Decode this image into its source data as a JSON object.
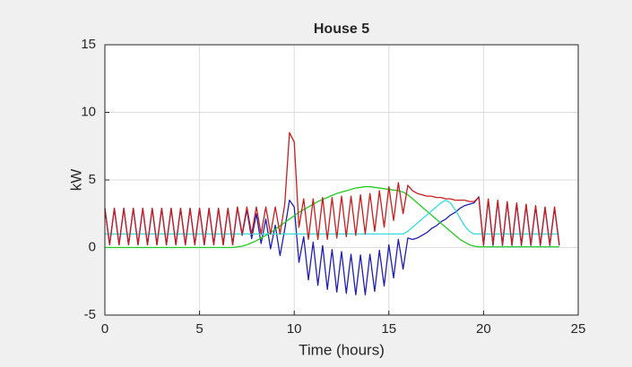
{
  "chart_data": {
    "type": "line",
    "title": "House 5",
    "xlabel": "Time (hours)",
    "ylabel": "kW",
    "xlim": [
      0,
      25
    ],
    "ylim": [
      -5,
      15
    ],
    "xticks": [
      0,
      5,
      10,
      15,
      20,
      25
    ],
    "yticks": [
      -5,
      0,
      5,
      10,
      15
    ],
    "grid": true,
    "x": [
      0,
      0.25,
      0.5,
      0.75,
      1,
      1.25,
      1.5,
      1.75,
      2,
      2.25,
      2.5,
      2.75,
      3,
      3.25,
      3.5,
      3.75,
      4,
      4.25,
      4.5,
      4.75,
      5,
      5.25,
      5.5,
      5.75,
      6,
      6.25,
      6.5,
      6.75,
      7,
      7.25,
      7.5,
      7.75,
      8,
      8.25,
      8.5,
      8.75,
      9,
      9.25,
      9.5,
      9.75,
      10,
      10.25,
      10.5,
      10.75,
      11,
      11.25,
      11.5,
      11.75,
      12,
      12.25,
      12.5,
      12.75,
      13,
      13.25,
      13.5,
      13.75,
      14,
      14.25,
      14.5,
      14.75,
      15,
      15.25,
      15.5,
      15.75,
      16,
      16.25,
      16.5,
      16.75,
      17,
      17.25,
      17.5,
      17.75,
      18,
      18.25,
      18.5,
      18.75,
      19,
      19.25,
      19.5,
      19.75,
      20,
      20.25,
      20.5,
      20.75,
      21,
      21.25,
      21.5,
      21.75,
      22,
      22.25,
      22.5,
      22.75,
      23,
      23.25,
      23.5,
      23.75,
      24
    ],
    "series": [
      {
        "color": "#1f1fb4",
        "values": [
          2.9,
          0.2,
          2.9,
          0.2,
          2.9,
          0.2,
          2.9,
          0.2,
          2.9,
          0.2,
          2.9,
          0.2,
          2.9,
          0.2,
          2.9,
          0.2,
          2.9,
          0.2,
          2.9,
          0.2,
          2.9,
          0.2,
          2.9,
          0.2,
          2.9,
          0.2,
          2.9,
          0.2,
          2.95,
          0.9,
          2.8,
          0.65,
          2.5,
          0.3,
          2.1,
          -0.1,
          1.65,
          -0.6,
          1.35,
          3.5,
          3.0,
          -1.1,
          0.8,
          -2.4,
          0.4,
          -2.8,
          0.15,
          -3.1,
          -0.15,
          -3.3,
          -0.3,
          -3.4,
          -0.5,
          -3.5,
          -0.55,
          -3.5,
          -0.5,
          -3.25,
          -0.2,
          -2.85,
          0.2,
          -2.25,
          0.6,
          -1.6,
          0.7,
          0.6,
          0.7,
          0.9,
          1.1,
          1.4,
          1.6,
          1.9,
          2.1,
          2.4,
          2.6,
          2.9,
          3.1,
          3.2,
          3.3,
          3.75,
          0.15,
          3.55,
          0.15,
          3.45,
          0.15,
          3.35,
          0.15,
          3.25,
          0.15,
          3.15,
          0.15,
          3.05,
          0.15,
          2.95,
          0.15,
          2.95,
          0.15
        ]
      },
      {
        "color": "#22cc22",
        "values": [
          0,
          0,
          0,
          0,
          0,
          0,
          0,
          0,
          0,
          0,
          0,
          0,
          0,
          0,
          0,
          0,
          0,
          0,
          0,
          0,
          0,
          0,
          0,
          0,
          0,
          0,
          0,
          0,
          0.05,
          0.1,
          0.2,
          0.35,
          0.5,
          0.7,
          0.9,
          1.1,
          1.35,
          1.6,
          1.85,
          2.1,
          2.35,
          2.6,
          2.8,
          3.0,
          3.2,
          3.4,
          3.55,
          3.7,
          3.85,
          4.0,
          4.1,
          4.2,
          4.3,
          4.4,
          4.45,
          4.5,
          4.5,
          4.45,
          4.4,
          4.35,
          4.3,
          4.25,
          4.2,
          4.1,
          3.9,
          3.6,
          3.3,
          3.0,
          2.7,
          2.4,
          2.1,
          1.8,
          1.5,
          1.2,
          0.9,
          0.6,
          0.4,
          0.2,
          0.1,
          0.05,
          0.05,
          0.05,
          0.05,
          0.05,
          0.05,
          0.05,
          0.05,
          0.05,
          0.05,
          0.05,
          0.05,
          0.05,
          0.05,
          0.05,
          0.05,
          0.05,
          0.05
        ]
      },
      {
        "color": "#33dddd",
        "values": [
          1,
          1,
          1,
          1,
          1,
          1,
          1,
          1,
          1,
          1,
          1,
          1,
          1,
          1,
          1,
          1,
          1,
          1,
          1,
          1,
          1,
          1,
          1,
          1,
          1,
          1,
          1,
          1,
          1,
          1,
          1,
          1,
          1,
          1,
          1,
          1,
          1,
          1,
          1,
          1,
          1,
          1,
          1,
          1,
          1,
          1,
          1,
          1,
          1,
          1,
          1,
          1,
          1,
          1,
          1,
          1,
          1,
          1,
          1,
          1,
          1,
          1,
          1,
          1,
          1.2,
          1.5,
          1.8,
          2.1,
          2.4,
          2.7,
          3.0,
          3.3,
          3.5,
          3.3,
          2.8,
          2.2,
          1.6,
          1.2,
          1.0,
          1,
          1,
          1,
          1,
          1,
          1,
          1,
          1,
          1,
          1,
          1,
          1,
          1,
          1,
          1,
          1,
          1,
          1
        ]
      },
      {
        "color": "#c81e1e",
        "values": [
          2.9,
          0.2,
          2.9,
          0.2,
          2.9,
          0.2,
          2.9,
          0.2,
          2.9,
          0.2,
          2.9,
          0.2,
          2.9,
          0.2,
          2.9,
          0.2,
          2.9,
          0.2,
          2.9,
          0.2,
          2.9,
          0.2,
          2.9,
          0.2,
          2.9,
          0.2,
          2.9,
          0.2,
          3,
          1,
          3,
          1,
          3,
          1,
          3,
          1,
          3,
          1,
          3.2,
          8.5,
          7.8,
          1.5,
          3.6,
          0.6,
          3.6,
          0.6,
          3.7,
          0.6,
          3.7,
          0.7,
          3.8,
          0.8,
          3.8,
          0.9,
          3.9,
          1.0,
          4.0,
          1.2,
          4.2,
          1.5,
          4.5,
          2.0,
          4.8,
          2.5,
          4.6,
          4.2,
          4.0,
          3.9,
          3.8,
          3.8,
          3.7,
          3.7,
          3.6,
          3.6,
          3.5,
          3.5,
          3.5,
          3.4,
          3.4,
          3.7,
          0.2,
          3.6,
          0.2,
          3.5,
          0.2,
          3.4,
          0.2,
          3.3,
          0.2,
          3.2,
          0.2,
          3.1,
          0.2,
          3.0,
          0.2,
          3.0,
          0.2
        ]
      }
    ]
  }
}
